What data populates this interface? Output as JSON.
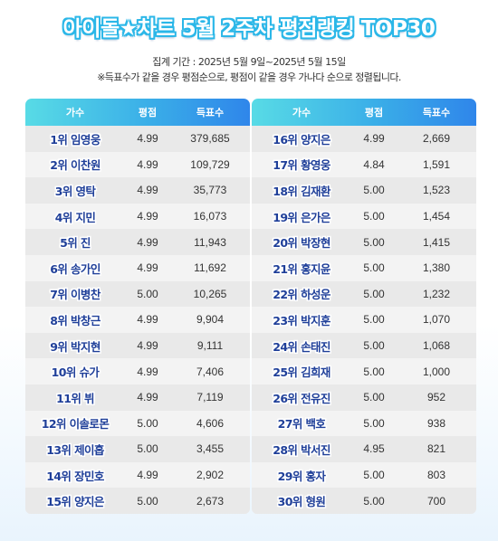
{
  "title": "아이돌★차트 5월 2주차 평점랭킹 TOP30",
  "period": "집계 기간 : 2025년 5월 9일~2025년 5월 15일",
  "note": "※득표수가 같을 경우 평점순으로, 평점이 같을 경우 가나다 순으로 정렬됩니다.",
  "headers": {
    "name": "가수",
    "score": "평점",
    "votes": "득표수"
  },
  "left_rows": [
    {
      "name": "1위 임영웅",
      "score": "4.99",
      "votes": "379,685"
    },
    {
      "name": "2위 이찬원",
      "score": "4.99",
      "votes": "109,729"
    },
    {
      "name": "3위 영탁",
      "score": "4.99",
      "votes": "35,773"
    },
    {
      "name": "4위 지민",
      "score": "4.99",
      "votes": "16,073"
    },
    {
      "name": "5위 진",
      "score": "4.99",
      "votes": "11,943"
    },
    {
      "name": "6위 송가인",
      "score": "4.99",
      "votes": "11,692"
    },
    {
      "name": "7위 이병찬",
      "score": "5.00",
      "votes": "10,265"
    },
    {
      "name": "8위 박창근",
      "score": "4.99",
      "votes": "9,904"
    },
    {
      "name": "9위 박지현",
      "score": "4.99",
      "votes": "9,111"
    },
    {
      "name": "10위 슈가",
      "score": "4.99",
      "votes": "7,406"
    },
    {
      "name": "11위 뷔",
      "score": "4.99",
      "votes": "7,119"
    },
    {
      "name": "12위 이솔로몬",
      "score": "5.00",
      "votes": "4,606"
    },
    {
      "name": "13위 제이홉",
      "score": "5.00",
      "votes": "3,455"
    },
    {
      "name": "14위 장민호",
      "score": "4.99",
      "votes": "2,902"
    },
    {
      "name": "15위 양지은",
      "score": "5.00",
      "votes": "2,673"
    }
  ],
  "right_rows": [
    {
      "name": "16위 양지은",
      "score": "4.99",
      "votes": "2,669"
    },
    {
      "name": "17위 황영웅",
      "score": "4.84",
      "votes": "1,591"
    },
    {
      "name": "18위 김재환",
      "score": "5.00",
      "votes": "1,523"
    },
    {
      "name": "19위 은가은",
      "score": "5.00",
      "votes": "1,454"
    },
    {
      "name": "20위 박장현",
      "score": "5.00",
      "votes": "1,415"
    },
    {
      "name": "21위 홍지윤",
      "score": "5.00",
      "votes": "1,380"
    },
    {
      "name": "22위 하성운",
      "score": "5.00",
      "votes": "1,232"
    },
    {
      "name": "23위 박지훈",
      "score": "5.00",
      "votes": "1,070"
    },
    {
      "name": "24위 손태진",
      "score": "5.00",
      "votes": "1,068"
    },
    {
      "name": "25위 김희재",
      "score": "5.00",
      "votes": "1,000"
    },
    {
      "name": "26위 전유진",
      "score": "5.00",
      "votes": "952"
    },
    {
      "name": "27위 백호",
      "score": "5.00",
      "votes": "938"
    },
    {
      "name": "28위 박서진",
      "score": "4.95",
      "votes": "821"
    },
    {
      "name": "29위 홍자",
      "score": "5.00",
      "votes": "803"
    },
    {
      "name": "30위 형원",
      "score": "5.00",
      "votes": "700"
    }
  ]
}
